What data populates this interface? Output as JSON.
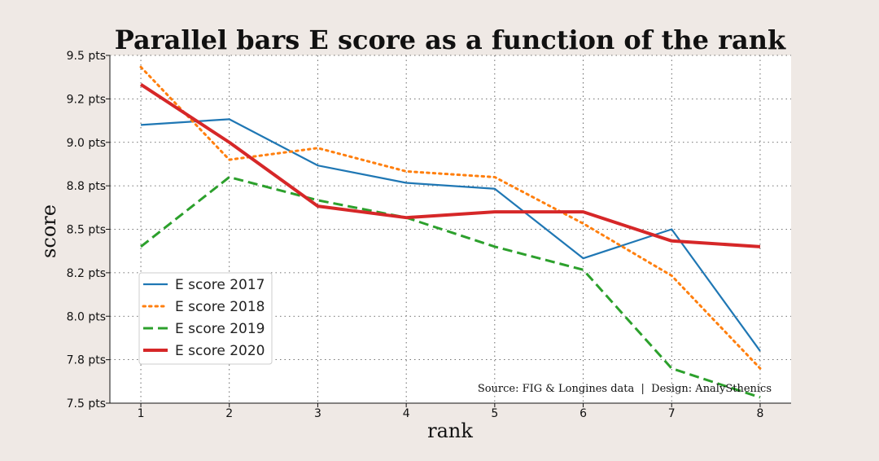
{
  "chart_data": {
    "type": "line",
    "title": "Parallel bars E score as a function of the rank",
    "xlabel": "rank",
    "ylabel": "score",
    "x": [
      1,
      2,
      3,
      4,
      5,
      6,
      7,
      8
    ],
    "xlim": [
      0.65,
      8.35
    ],
    "ylim": [
      7.5,
      9.5
    ],
    "yticks": [
      7.5,
      7.75,
      8.0,
      8.25,
      8.5,
      8.75,
      9.0,
      9.25,
      9.5
    ],
    "ytick_labels": [
      "7.5 pts",
      "7.8 pts",
      "8.0 pts",
      "8.2 pts",
      "8.5 pts",
      "8.8 pts",
      "9.0 pts",
      "9.2 pts",
      "9.5 pts"
    ],
    "grid": true,
    "legend_position": "lower-left",
    "series": [
      {
        "name": "E score 2017",
        "color": "#1f77b4",
        "dash": "solid",
        "values": [
          9.1,
          9.133,
          8.867,
          8.767,
          8.733,
          8.333,
          8.5,
          7.8
        ]
      },
      {
        "name": "E score 2018",
        "color": "#ff7f0e",
        "dash": "dotted",
        "values": [
          9.433,
          8.9,
          8.967,
          8.833,
          8.8,
          8.533,
          8.233,
          7.7
        ]
      },
      {
        "name": "E score 2019",
        "color": "#2ca02c",
        "dash": "dashed",
        "values": [
          8.4,
          8.8,
          8.667,
          8.567,
          8.4,
          8.267,
          7.7,
          7.533
        ]
      },
      {
        "name": "E score 2020",
        "color": "#d62728",
        "dash": "solid-thick",
        "values": [
          9.333,
          9.0,
          8.633,
          8.567,
          8.6,
          8.6,
          8.433,
          8.4
        ]
      }
    ]
  },
  "source_text": "Source: FIG & Longines data  |  Design: AnalySthenics"
}
